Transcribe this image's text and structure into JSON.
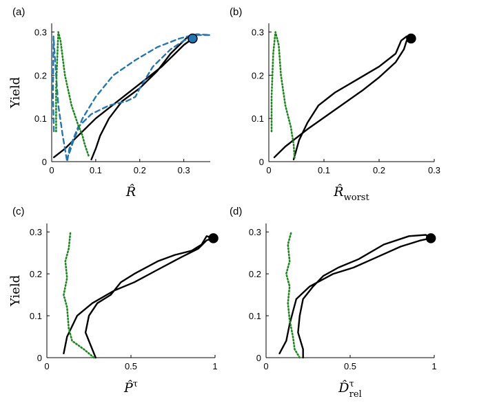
{
  "chart_data": [
    {
      "panel_label": "(a)",
      "type": "line",
      "xlabel": "R̂",
      "xlabel_main": "R̂",
      "xlabel_sub": "",
      "ylabel": "Yield",
      "xlim": [
        0,
        0.36
      ],
      "ylim": [
        0,
        0.32
      ],
      "xticks": [
        0,
        0.1,
        0.2,
        0.3
      ],
      "xtick_labels": [
        "0",
        "0.1",
        "0.2",
        "0.3"
      ],
      "yticks": [
        0,
        0.1,
        0.2,
        0.3
      ],
      "ytick_labels": [
        "0",
        "0.1",
        "0.2",
        "0.3"
      ],
      "marker": {
        "x": 0.32,
        "y": 0.285,
        "color": "#1f77b4"
      },
      "series": [
        {
          "name": "solid-black",
          "style": "solid",
          "color": "#000000",
          "points": [
            [
              0.005,
              0.01
            ],
            [
              0.03,
              0.03
            ],
            [
              0.06,
              0.06
            ],
            [
              0.1,
              0.1
            ],
            [
              0.15,
              0.14
            ],
            [
              0.2,
              0.18
            ],
            [
              0.25,
              0.22
            ],
            [
              0.28,
              0.25
            ],
            [
              0.3,
              0.27
            ],
            [
              0.32,
              0.285
            ],
            [
              0.31,
              0.29
            ],
            [
              0.29,
              0.27
            ],
            [
              0.27,
              0.25
            ],
            [
              0.24,
              0.21
            ],
            [
              0.2,
              0.17
            ],
            [
              0.16,
              0.14
            ],
            [
              0.13,
              0.1
            ],
            [
              0.11,
              0.06
            ],
            [
              0.1,
              0.03
            ],
            [
              0.09,
              0.005
            ]
          ]
        },
        {
          "name": "dashed-blue",
          "style": "dashed",
          "color": "#1f77b4",
          "points": [
            [
              0.005,
              0.07
            ],
            [
              0.003,
              0.15
            ],
            [
              0.004,
              0.29
            ],
            [
              0.01,
              0.2
            ],
            [
              0.015,
              0.13
            ],
            [
              0.025,
              0.06
            ],
            [
              0.035,
              0.0
            ],
            [
              0.04,
              0.03
            ],
            [
              0.06,
              0.08
            ],
            [
              0.09,
              0.11
            ],
            [
              0.13,
              0.13
            ],
            [
              0.17,
              0.14
            ],
            [
              0.19,
              0.15
            ],
            [
              0.2,
              0.17
            ],
            [
              0.23,
              0.22
            ],
            [
              0.27,
              0.26
            ],
            [
              0.3,
              0.28
            ],
            [
              0.33,
              0.293
            ],
            [
              0.36,
              0.293
            ],
            [
              0.33,
              0.295
            ],
            [
              0.29,
              0.285
            ],
            [
              0.24,
              0.265
            ],
            [
              0.19,
              0.235
            ],
            [
              0.14,
              0.2
            ],
            [
              0.1,
              0.15
            ],
            [
              0.07,
              0.1
            ],
            [
              0.05,
              0.05
            ],
            [
              0.04,
              0.02
            ]
          ]
        },
        {
          "name": "dotted-green",
          "style": "dotted",
          "color": "#1a8a1a",
          "points": [
            [
              0.01,
              0.07
            ],
            [
              0.01,
              0.17
            ],
            [
              0.013,
              0.25
            ],
            [
              0.015,
              0.3
            ],
            [
              0.02,
              0.28
            ],
            [
              0.03,
              0.2
            ],
            [
              0.045,
              0.13
            ],
            [
              0.06,
              0.085
            ],
            [
              0.07,
              0.06
            ],
            [
              0.075,
              0.04
            ],
            [
              0.085,
              0.01
            ]
          ]
        }
      ]
    },
    {
      "panel_label": "(b)",
      "type": "line",
      "xlabel": "R̂worst",
      "xlabel_main": "R̂",
      "xlabel_sub": "worst",
      "ylabel": "",
      "xlim": [
        0,
        0.3
      ],
      "ylim": [
        0,
        0.32
      ],
      "xticks": [
        0,
        0.1,
        0.2,
        0.3
      ],
      "xtick_labels": [
        "0",
        "0.1",
        "0.2",
        "0.3"
      ],
      "yticks": [
        0,
        0.1,
        0.2,
        0.3
      ],
      "ytick_labels": [
        "0",
        "0.1",
        "0.2",
        "0.3"
      ],
      "marker": {
        "x": 0.258,
        "y": 0.285,
        "color": "#000000"
      },
      "series": [
        {
          "name": "solid-black",
          "style": "solid",
          "color": "#000000",
          "points": [
            [
              0.01,
              0.01
            ],
            [
              0.03,
              0.035
            ],
            [
              0.07,
              0.075
            ],
            [
              0.12,
              0.12
            ],
            [
              0.17,
              0.165
            ],
            [
              0.2,
              0.195
            ],
            [
              0.23,
              0.23
            ],
            [
              0.245,
              0.26
            ],
            [
              0.25,
              0.28
            ],
            [
              0.258,
              0.285
            ],
            [
              0.25,
              0.29
            ],
            [
              0.24,
              0.28
            ],
            [
              0.23,
              0.25
            ],
            [
              0.2,
              0.22
            ],
            [
              0.16,
              0.19
            ],
            [
              0.12,
              0.16
            ],
            [
              0.09,
              0.13
            ],
            [
              0.07,
              0.09
            ],
            [
              0.055,
              0.05
            ],
            [
              0.045,
              0.005
            ]
          ]
        },
        {
          "name": "dotted-green",
          "style": "dotted",
          "color": "#1a8a1a",
          "points": [
            [
              0.005,
              0.07
            ],
            [
              0.005,
              0.15
            ],
            [
              0.008,
              0.25
            ],
            [
              0.012,
              0.3
            ],
            [
              0.018,
              0.27
            ],
            [
              0.022,
              0.2
            ],
            [
              0.03,
              0.13
            ],
            [
              0.04,
              0.08
            ],
            [
              0.045,
              0.04
            ],
            [
              0.047,
              0.005
            ]
          ]
        }
      ]
    },
    {
      "panel_label": "(c)",
      "type": "line",
      "xlabel": "P̂τ",
      "xlabel_main": "P̂",
      "xlabel_sub": "τ",
      "ylabel": "Yield",
      "xlim": [
        0,
        1
      ],
      "ylim": [
        0,
        0.32
      ],
      "xticks": [
        0,
        0.5,
        1
      ],
      "xtick_labels": [
        "0",
        "0.5",
        "1"
      ],
      "yticks": [
        0,
        0.1,
        0.2,
        0.3
      ],
      "ytick_labels": [
        "0",
        "0.1",
        "0.2",
        "0.3"
      ],
      "marker": {
        "x": 0.99,
        "y": 0.285,
        "color": "#000000"
      },
      "series": [
        {
          "name": "solid-black",
          "style": "solid",
          "color": "#000000",
          "points": [
            [
              0.1,
              0.01
            ],
            [
              0.12,
              0.05
            ],
            [
              0.18,
              0.1
            ],
            [
              0.27,
              0.13
            ],
            [
              0.4,
              0.16
            ],
            [
              0.52,
              0.18
            ],
            [
              0.66,
              0.21
            ],
            [
              0.8,
              0.24
            ],
            [
              0.9,
              0.26
            ],
            [
              0.95,
              0.28
            ],
            [
              0.99,
              0.285
            ],
            [
              0.95,
              0.29
            ],
            [
              0.92,
              0.27
            ],
            [
              0.86,
              0.255
            ],
            [
              0.76,
              0.245
            ],
            [
              0.66,
              0.23
            ],
            [
              0.52,
              0.2
            ],
            [
              0.44,
              0.18
            ],
            [
              0.38,
              0.15
            ],
            [
              0.3,
              0.13
            ],
            [
              0.25,
              0.1
            ],
            [
              0.23,
              0.06
            ],
            [
              0.26,
              0.03
            ],
            [
              0.29,
              0.0
            ]
          ]
        },
        {
          "name": "dotted-green",
          "style": "dotted",
          "color": "#1a8a1a",
          "points": [
            [
              0.28,
              0.0
            ],
            [
              0.22,
              0.02
            ],
            [
              0.15,
              0.04
            ],
            [
              0.13,
              0.07
            ],
            [
              0.12,
              0.12
            ],
            [
              0.1,
              0.15
            ],
            [
              0.12,
              0.19
            ],
            [
              0.11,
              0.23
            ],
            [
              0.13,
              0.26
            ],
            [
              0.14,
              0.3
            ]
          ]
        }
      ]
    },
    {
      "panel_label": "(d)",
      "type": "line",
      "xlabel": "D̂τrel",
      "xlabel_main": "D̂",
      "xlabel_sub": "rel",
      "xlabel_sup": "τ",
      "ylabel": "",
      "xlim": [
        0,
        1
      ],
      "ylim": [
        0,
        0.32
      ],
      "xticks": [
        0,
        0.5,
        1
      ],
      "xtick_labels": [
        "0",
        "0.5",
        "1"
      ],
      "yticks": [
        0,
        0.1,
        0.2,
        0.3
      ],
      "ytick_labels": [
        "0",
        "0.1",
        "0.2",
        "0.3"
      ],
      "marker": {
        "x": 0.98,
        "y": 0.285,
        "color": "#000000"
      },
      "series": [
        {
          "name": "solid-black",
          "style": "solid",
          "color": "#000000",
          "points": [
            [
              0.08,
              0.01
            ],
            [
              0.12,
              0.04
            ],
            [
              0.14,
              0.08
            ],
            [
              0.16,
              0.11
            ],
            [
              0.18,
              0.14
            ],
            [
              0.26,
              0.17
            ],
            [
              0.4,
              0.2
            ],
            [
              0.52,
              0.215
            ],
            [
              0.66,
              0.24
            ],
            [
              0.8,
              0.265
            ],
            [
              0.92,
              0.28
            ],
            [
              0.98,
              0.285
            ],
            [
              0.95,
              0.293
            ],
            [
              0.85,
              0.29
            ],
            [
              0.7,
              0.27
            ],
            [
              0.55,
              0.235
            ],
            [
              0.43,
              0.215
            ],
            [
              0.34,
              0.195
            ],
            [
              0.28,
              0.17
            ],
            [
              0.22,
              0.14
            ],
            [
              0.2,
              0.1
            ],
            [
              0.19,
              0.06
            ],
            [
              0.22,
              0.02
            ],
            [
              0.22,
              0.0
            ]
          ]
        },
        {
          "name": "dotted-green",
          "style": "dotted",
          "color": "#1a8a1a",
          "points": [
            [
              0.2,
              0.0
            ],
            [
              0.17,
              0.02
            ],
            [
              0.16,
              0.05
            ],
            [
              0.14,
              0.09
            ],
            [
              0.13,
              0.13
            ],
            [
              0.14,
              0.17
            ],
            [
              0.12,
              0.2
            ],
            [
              0.14,
              0.23
            ],
            [
              0.13,
              0.27
            ],
            [
              0.15,
              0.3
            ]
          ]
        }
      ]
    }
  ]
}
